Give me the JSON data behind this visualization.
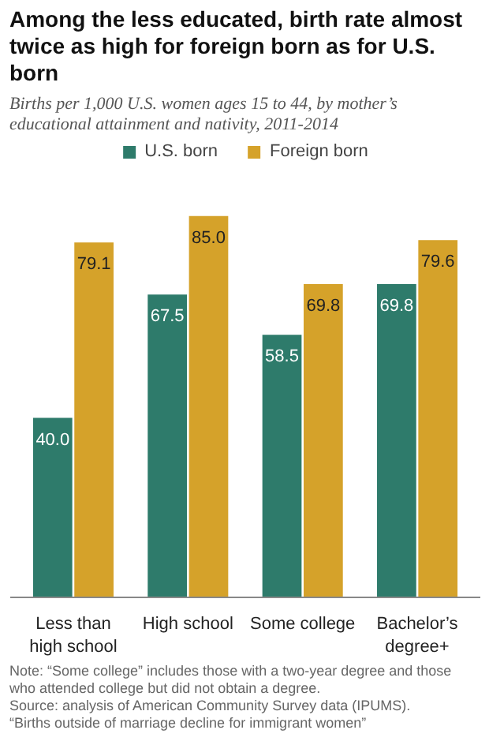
{
  "chart_data": {
    "type": "bar",
    "title": "Among the less educated, birth rate almost twice as high for foreign born as for U.S. born",
    "subtitle": "Births per 1,000 U.S. women ages 15 to 44, by mother’s educational attainment and nativity, 2011-2014",
    "categories": [
      "Less than\nhigh school",
      "High school",
      "Some college",
      "Bachelor’s\ndegree+"
    ],
    "series": [
      {
        "name": "U.S. born",
        "color": "#2e7b6b",
        "values": [
          40.0,
          67.5,
          58.5,
          69.8
        ],
        "value_labels": [
          "40.0",
          "67.5",
          "58.5",
          "69.8"
        ]
      },
      {
        "name": "Foreign born",
        "color": "#d5a22a",
        "values": [
          79.1,
          85.0,
          69.8,
          79.6
        ],
        "value_labels": [
          "79.1",
          "85.0",
          "69.8",
          "79.6"
        ]
      }
    ],
    "legend": "top",
    "annotations": [
      "Note: “Some college” includes those with a two-year degree and those who attended college but did not obtain a degree.",
      "Source: analysis of American Community Survey data (IPUMS).",
      "“Births outside of marriage decline for immigrant women”"
    ]
  }
}
